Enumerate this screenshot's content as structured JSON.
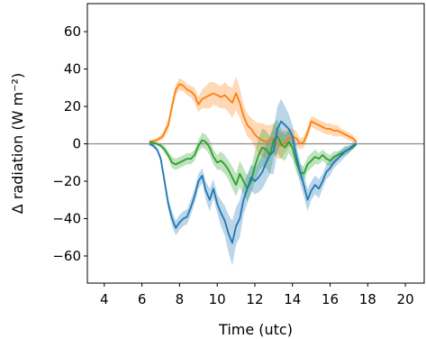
{
  "chart_data": {
    "type": "line",
    "xlabel": "Time (utc)",
    "ylabel": "Δ radiation (W m⁻²)",
    "xlim": [
      3.1,
      21.0
    ],
    "ylim": [
      -74.5,
      75.0
    ],
    "xticks": [
      4,
      6,
      8,
      10,
      12,
      14,
      16,
      18,
      20
    ],
    "yticks": [
      -60,
      -40,
      -20,
      0,
      20,
      40,
      60
    ],
    "ytick_labels": [
      "−60",
      "−40",
      "−20",
      "0",
      "20",
      "40",
      "60"
    ],
    "zero_line": {
      "y": 0,
      "color": "#8c8c8c"
    },
    "grid": false,
    "series": [
      {
        "color": "#ff7f0e",
        "shading": "± spread",
        "x": [
          6.4,
          6.8,
          7.1,
          7.4,
          7.6,
          7.8,
          8.0,
          8.2,
          8.4,
          8.6,
          8.8,
          9.0,
          9.2,
          9.4,
          9.6,
          9.8,
          10.0,
          10.2,
          10.4,
          10.6,
          10.8,
          11.0,
          11.2,
          11.4,
          11.6,
          11.8,
          12.0,
          12.2,
          12.4,
          12.6,
          12.8,
          13.0,
          13.2,
          13.4,
          13.6,
          13.8,
          14.0,
          14.2,
          14.4,
          14.6,
          14.8,
          15.0,
          15.2,
          15.4,
          15.6,
          15.8,
          16.0,
          16.2,
          16.4,
          16.6,
          16.8,
          17.0,
          17.2,
          17.4
        ],
        "y": [
          1,
          2,
          4,
          10,
          20,
          29,
          32,
          31,
          29,
          28,
          26,
          21,
          24,
          25,
          26,
          27,
          26,
          25,
          26,
          24,
          22,
          27,
          22,
          15,
          10,
          8,
          5,
          3,
          2,
          1,
          2,
          3,
          0,
          -1,
          1,
          3,
          4,
          3,
          0,
          1,
          6,
          12,
          11,
          10,
          9,
          8,
          8,
          7,
          7,
          6,
          5,
          4,
          3,
          1
        ],
        "band_halfwidth": [
          1,
          1,
          2,
          3,
          3,
          3,
          3,
          3,
          3,
          3,
          4,
          4,
          5,
          6,
          7,
          6,
          6,
          6,
          7,
          7,
          8,
          9,
          8,
          6,
          6,
          6,
          7,
          8,
          9,
          9,
          8,
          8,
          8,
          7,
          6,
          5,
          4,
          4,
          3,
          3,
          3,
          3,
          3,
          3,
          3,
          3,
          3,
          3,
          3,
          2,
          2,
          2,
          2,
          1
        ]
      },
      {
        "color": "#2ca02c",
        "shading": "± spread",
        "x": [
          6.4,
          6.8,
          7.0,
          7.2,
          7.4,
          7.6,
          7.8,
          8.0,
          8.2,
          8.4,
          8.6,
          8.8,
          9.0,
          9.2,
          9.4,
          9.6,
          9.8,
          10.0,
          10.2,
          10.4,
          10.6,
          10.8,
          11.0,
          11.2,
          11.4,
          11.6,
          11.8,
          12.0,
          12.2,
          12.4,
          12.6,
          12.8,
          13.0,
          13.2,
          13.4,
          13.6,
          13.8,
          14.0,
          14.2,
          14.4,
          14.6,
          14.8,
          15.0,
          15.2,
          15.4,
          15.6,
          15.8,
          16.0,
          16.2,
          16.4,
          16.6,
          16.8,
          17.0,
          17.2,
          17.4
        ],
        "y": [
          1,
          0,
          -1,
          -3,
          -6,
          -10,
          -11,
          -10,
          -9,
          -8,
          -8,
          -6,
          -1,
          2,
          1,
          -2,
          -7,
          -10,
          -9,
          -11,
          -14,
          -18,
          -22,
          -16,
          -20,
          -24,
          -20,
          -12,
          -6,
          -2,
          -3,
          -6,
          2,
          4,
          0,
          -2,
          1,
          -2,
          -10,
          -15,
          -16,
          -11,
          -9,
          -7,
          -8,
          -6,
          -8,
          -9,
          -7,
          -6,
          -5,
          -4,
          -3,
          -2,
          0
        ],
        "band_halfwidth": [
          1,
          1,
          1,
          2,
          2,
          3,
          3,
          3,
          3,
          3,
          3,
          3,
          3,
          4,
          4,
          4,
          4,
          4,
          5,
          5,
          5,
          6,
          6,
          7,
          7,
          7,
          7,
          8,
          9,
          10,
          10,
          10,
          9,
          9,
          8,
          7,
          6,
          6,
          5,
          4,
          4,
          4,
          4,
          4,
          3,
          3,
          3,
          3,
          3,
          2,
          2,
          2,
          2,
          1,
          1
        ]
      },
      {
        "color": "#1f77b4",
        "shading": "± spread",
        "x": [
          6.4,
          6.6,
          6.8,
          7.0,
          7.2,
          7.4,
          7.6,
          7.8,
          8.0,
          8.2,
          8.4,
          8.6,
          8.8,
          9.0,
          9.2,
          9.4,
          9.6,
          9.8,
          10.0,
          10.2,
          10.4,
          10.6,
          10.8,
          11.0,
          11.2,
          11.4,
          11.6,
          11.8,
          12.0,
          12.2,
          12.4,
          12.6,
          12.8,
          13.0,
          13.2,
          13.4,
          13.6,
          13.8,
          14.0,
          14.2,
          14.4,
          14.6,
          14.8,
          15.0,
          15.2,
          15.4,
          15.6,
          15.8,
          16.0,
          16.2,
          16.4,
          16.6,
          16.8,
          17.0,
          17.2,
          17.4
        ],
        "y": [
          0,
          -1,
          -3,
          -8,
          -20,
          -32,
          -40,
          -45,
          -42,
          -40,
          -39,
          -34,
          -28,
          -20,
          -17,
          -25,
          -30,
          -24,
          -32,
          -37,
          -41,
          -48,
          -53,
          -44,
          -40,
          -30,
          -24,
          -18,
          -20,
          -18,
          -15,
          -10,
          -6,
          -4,
          8,
          12,
          10,
          8,
          4,
          -6,
          -15,
          -22,
          -30,
          -25,
          -22,
          -24,
          -20,
          -15,
          -13,
          -10,
          -8,
          -6,
          -4,
          -3,
          -1,
          0
        ],
        "band_halfwidth": [
          1,
          1,
          1,
          2,
          3,
          3,
          4,
          4,
          4,
          4,
          4,
          4,
          4,
          4,
          4,
          5,
          6,
          5,
          5,
          7,
          8,
          10,
          12,
          10,
          10,
          8,
          8,
          7,
          7,
          8,
          9,
          10,
          10,
          12,
          12,
          12,
          10,
          8,
          6,
          6,
          6,
          6,
          6,
          5,
          5,
          5,
          4,
          4,
          4,
          3,
          3,
          3,
          3,
          2,
          2,
          1
        ]
      }
    ]
  }
}
